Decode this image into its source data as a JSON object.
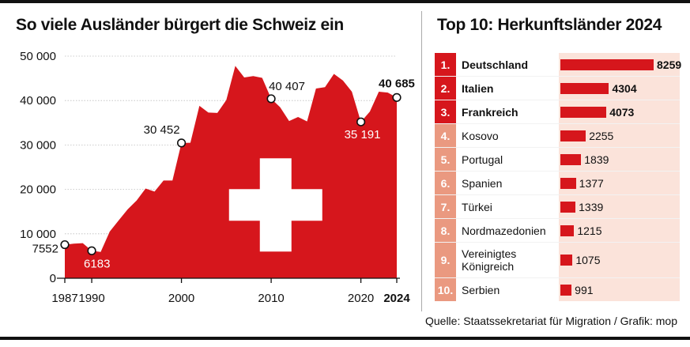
{
  "left_title": "So viele Ausländer bürgert die Schweiz ein",
  "right_title": "Top 10: Herkunftsländer 2024",
  "source": "Quelle: Staatssekretariat für Migration / Grafik: mop",
  "colors": {
    "red": "#d6161c",
    "light_red": "#ea9980",
    "pink_bg": "#fbe3da",
    "text": "#111111"
  },
  "chart_data": [
    {
      "type": "area",
      "title": "So viele Ausländer bürgert die Schweiz ein",
      "x": [
        1987,
        1988,
        1989,
        1990,
        1991,
        1992,
        1993,
        1994,
        1995,
        1996,
        1997,
        1998,
        1999,
        2000,
        2001,
        2002,
        2003,
        2004,
        2005,
        2006,
        2007,
        2008,
        2009,
        2010,
        2011,
        2012,
        2013,
        2014,
        2015,
        2016,
        2017,
        2018,
        2019,
        2020,
        2021,
        2022,
        2023,
        2024
      ],
      "y": [
        7552,
        7800,
        7900,
        6183,
        5900,
        10500,
        13000,
        15500,
        17500,
        20200,
        19500,
        22000,
        22000,
        30452,
        30500,
        38800,
        37300,
        37200,
        40100,
        47800,
        45200,
        45500,
        45100,
        40407,
        38500,
        35400,
        36300,
        35300,
        42700,
        43000,
        46000,
        44500,
        42000,
        35191,
        37500,
        42000,
        41800,
        40685
      ],
      "ylim": [
        0,
        50000
      ],
      "yticks": [
        0,
        10000,
        20000,
        30000,
        40000,
        50000
      ],
      "ytick_labels": [
        "0",
        "10 000",
        "20 000",
        "30 000",
        "40 000",
        "50 000"
      ],
      "xticks": [
        1987,
        1990,
        2000,
        2010,
        2020,
        2024
      ],
      "xtick_labels": [
        "1987",
        "1990",
        "2000",
        "2010",
        "2020",
        "2024"
      ],
      "annotations": [
        {
          "x": 1987,
          "y": 7552,
          "label": "7552"
        },
        {
          "x": 1990,
          "y": 6183,
          "label": "6183"
        },
        {
          "x": 2000,
          "y": 30452,
          "label": "30 452"
        },
        {
          "x": 2010,
          "y": 40407,
          "label": "40 407"
        },
        {
          "x": 2020,
          "y": 35191,
          "label": "35 191"
        },
        {
          "x": 2024,
          "y": 40685,
          "label": "40 685"
        }
      ],
      "decoration": "swiss-flag-cross",
      "grid": true
    },
    {
      "type": "bar",
      "title": "Top 10: Herkunftsländer 2024",
      "orientation": "horizontal",
      "categories": [
        "Deutschland",
        "Italien",
        "Frankreich",
        "Kosovo",
        "Portugal",
        "Spanien",
        "Türkei",
        "Nordmazedonien",
        "Vereinigtes\nKönigreich",
        "Serbien"
      ],
      "ranks": [
        "1.",
        "2.",
        "3.",
        "4.",
        "5.",
        "6.",
        "7.",
        "8.",
        "9.",
        "10."
      ],
      "values": [
        8259,
        4304,
        4073,
        2255,
        1839,
        1377,
        1339,
        1215,
        1075,
        991
      ],
      "value_labels": [
        "8259",
        "4304",
        "4073",
        "2255",
        "1839",
        "1377",
        "1339",
        "1215",
        "1075",
        "991"
      ],
      "xlim": [
        0,
        8259
      ]
    }
  ]
}
